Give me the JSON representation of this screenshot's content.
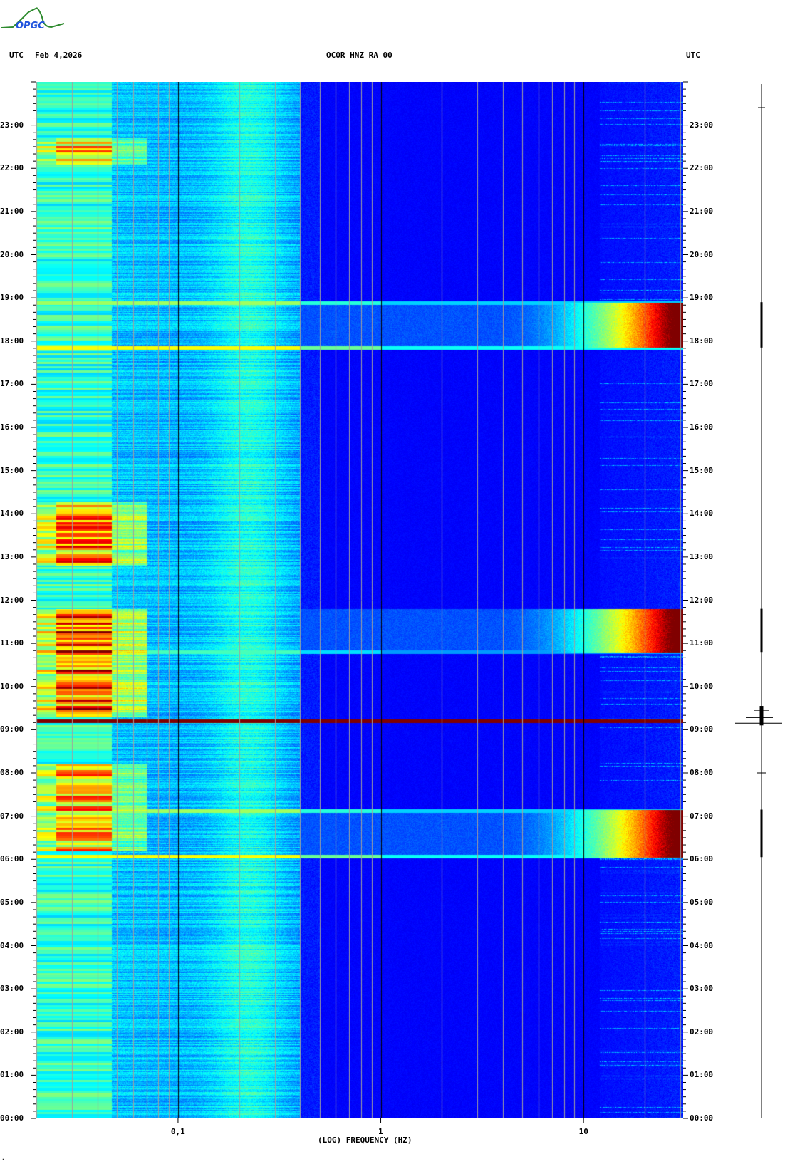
{
  "logo": {
    "text": "OPGC",
    "color_text": "#2255dd",
    "color_curve": "#2e8b2e"
  },
  "header": {
    "left_tz": "UTC",
    "date": "Feb 4,2026",
    "station": "OCOR HNZ RA 00",
    "right_tz": "UTC"
  },
  "footer_mark": "ʼ",
  "chart_data": {
    "type": "heatmap",
    "title": "OCOR HNZ RA 00",
    "xlabel": "(LOG) FREQUENCY (HZ)",
    "ylabel": "UTC",
    "x_scale": "log",
    "xlim": [
      0.02,
      31
    ],
    "x_ticks": [
      {
        "value": 0.1,
        "label": "0,1"
      },
      {
        "value": 1,
        "label": "1"
      },
      {
        "value": 10,
        "label": "10"
      }
    ],
    "ylim_hours": [
      0,
      24
    ],
    "y_ticks": [
      "00:00",
      "01:00",
      "02:00",
      "03:00",
      "04:00",
      "05:00",
      "06:00",
      "07:00",
      "08:00",
      "09:00",
      "10:00",
      "11:00",
      "12:00",
      "13:00",
      "14:00",
      "15:00",
      "16:00",
      "17:00",
      "18:00",
      "19:00",
      "20:00",
      "21:00",
      "22:00",
      "23:00"
    ],
    "colormap": "jet",
    "broadband_events_hours": [
      {
        "start": 6.05,
        "end": 7.15,
        "intensity": 1.0
      },
      {
        "start": 10.8,
        "end": 11.8,
        "intensity": 1.0
      },
      {
        "start": 17.85,
        "end": 18.9,
        "intensity": 1.0
      }
    ],
    "impulsive_events_hours": [
      {
        "time": 9.2,
        "intensity": 1.0
      },
      {
        "time": 6.07,
        "intensity": 0.7
      },
      {
        "time": 7.12,
        "intensity": 0.6
      },
      {
        "time": 17.85,
        "intensity": 0.7
      },
      {
        "time": 18.88,
        "intensity": 0.6
      },
      {
        "time": 10.8,
        "intensity": 0.5
      }
    ],
    "low_frequency_energy_periods_hours": [
      {
        "start": 9.3,
        "end": 11.8,
        "intensity": 0.85
      },
      {
        "start": 12.8,
        "end": 14.3,
        "intensity": 0.7
      },
      {
        "start": 6.2,
        "end": 8.2,
        "intensity": 0.6
      },
      {
        "start": 22.1,
        "end": 22.7,
        "intensity": 0.55
      }
    ]
  }
}
